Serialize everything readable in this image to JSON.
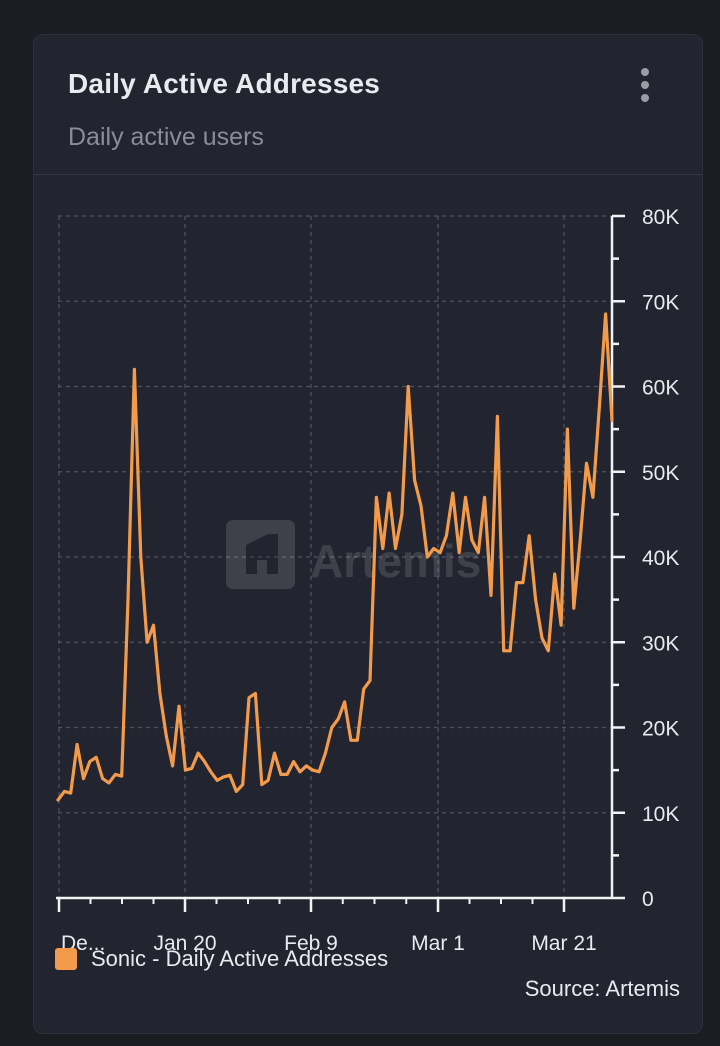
{
  "header": {
    "title": "Daily Active Addresses",
    "subtitle": "Daily active users",
    "menu_icon": "kebab-menu-icon"
  },
  "watermark": {
    "logo_icon": "artemis-logo-icon",
    "text": "Artemis"
  },
  "legend": {
    "label": "Sonic - Daily Active Addresses"
  },
  "source": "Source: Artemis",
  "colors": {
    "series": "#f29b4c",
    "background": "#22242f",
    "axis": "#f2f2f2",
    "grid": "#50535f",
    "text": "#e9eaee",
    "subtext": "#8a8d98"
  },
  "chart_data": {
    "type": "line",
    "title": "Daily Active Addresses",
    "subtitle": "Daily active users",
    "xlabel": "",
    "ylabel": "",
    "ylim": [
      0,
      80000
    ],
    "yticks": [
      0,
      10000,
      20000,
      30000,
      40000,
      50000,
      60000,
      70000,
      80000
    ],
    "ytick_labels": [
      "0",
      "10K",
      "20K",
      "30K",
      "40K",
      "50K",
      "60K",
      "70K",
      "80K"
    ],
    "xtick_labels": [
      "De...",
      "Jan 20",
      "Feb 9",
      "Mar 1",
      "Mar 21"
    ],
    "grid": true,
    "legend_position": "bottom-left",
    "series": [
      {
        "name": "Sonic - Daily Active Addresses",
        "color": "#f29b4c",
        "values": [
          11500,
          12500,
          12300,
          18000,
          14000,
          16000,
          16500,
          14000,
          13500,
          14500,
          14300,
          35000,
          62000,
          40000,
          30000,
          32000,
          24000,
          19000,
          15500,
          22500,
          15000,
          15200,
          17000,
          16000,
          14800,
          13800,
          14200,
          14400,
          12500,
          13300,
          23500,
          24000,
          13300,
          13800,
          17000,
          14500,
          14500,
          16000,
          14800,
          15500,
          15000,
          14800,
          17000,
          20000,
          21000,
          23000,
          18500,
          18500,
          24500,
          25500,
          47000,
          41000,
          47500,
          41000,
          45000,
          60000,
          49000,
          46000,
          40000,
          41000,
          40500,
          42500,
          47500,
          40500,
          47000,
          42000,
          40500,
          47000,
          35500,
          56500,
          29000,
          29000,
          37000,
          37000,
          42500,
          35000,
          30500,
          29000,
          38000,
          32000,
          55000,
          34000,
          42000,
          51000,
          47000,
          57500,
          68500,
          56000
        ]
      }
    ]
  }
}
